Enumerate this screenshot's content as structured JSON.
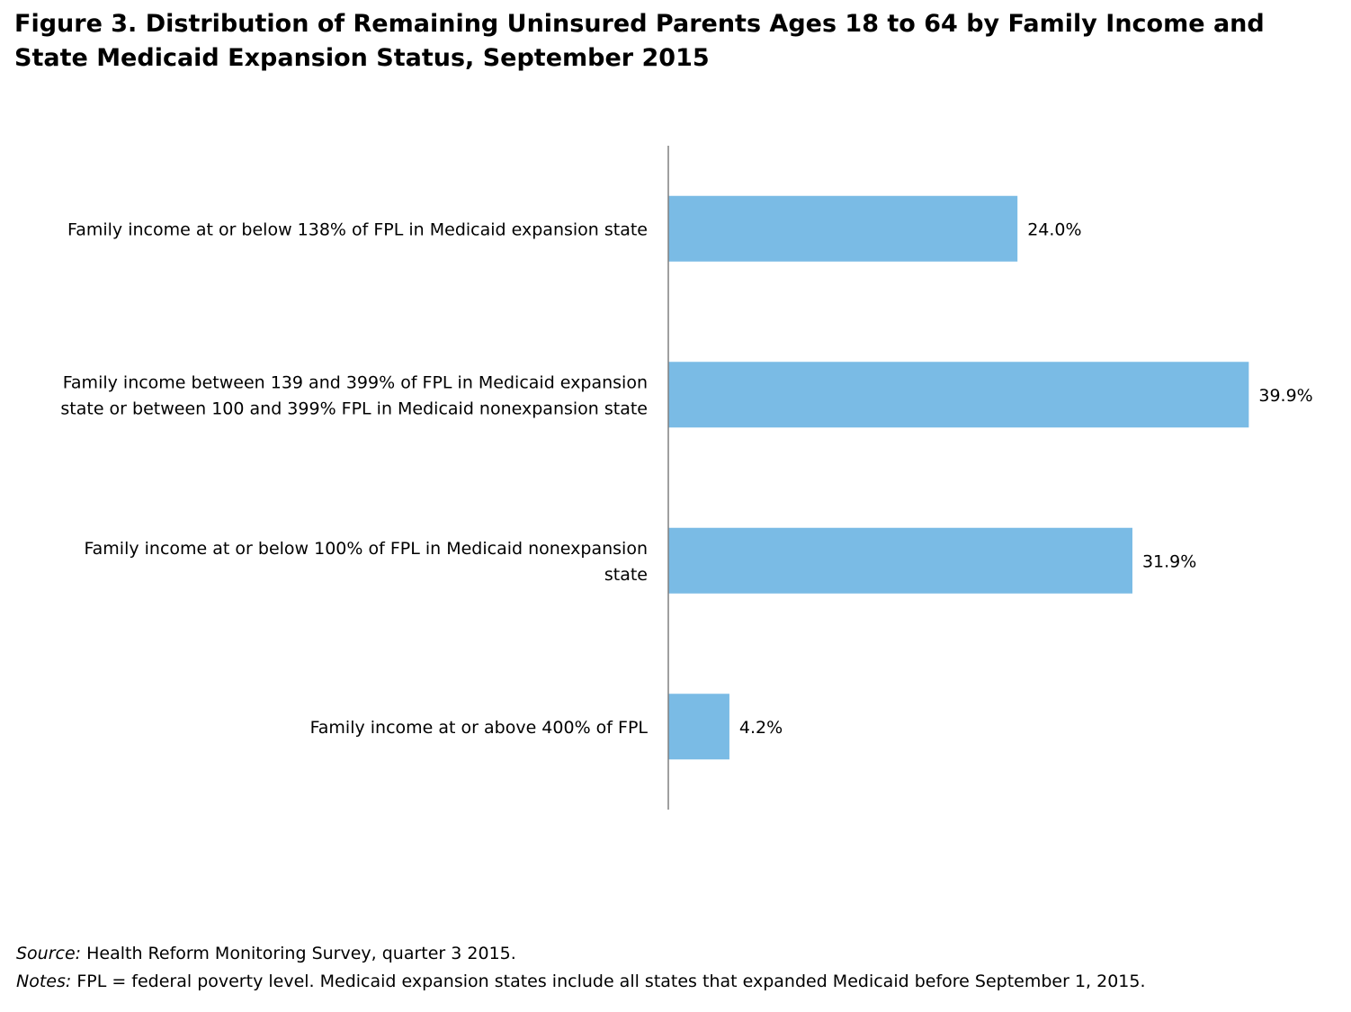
{
  "title_lines": [
    "Figure 3. Distribution of Remaining Uninsured Parents Ages 18 to 64 by Family Income and",
    "State Medicaid Expansion Status, September 2015"
  ],
  "chart_data": {
    "type": "bar",
    "orientation": "horizontal",
    "categories": [
      [
        "Family income at or below 138% of FPL in Medicaid expansion state"
      ],
      [
        "Family income between 139 and 399% of FPL in Medicaid expansion",
        "state or between 100 and 399% FPL in Medicaid nonexpansion state"
      ],
      [
        "Family income at or below 100% of FPL in Medicaid nonexpansion",
        "state"
      ],
      [
        "Family income at or above 400% of FPL"
      ]
    ],
    "values": [
      24.0,
      39.9,
      31.9,
      4.2
    ],
    "data_labels": [
      "24.0%",
      "39.9%",
      "31.9%",
      "4.2%"
    ],
    "xlim": [
      0,
      40
    ],
    "bar_color": "#7abbe5",
    "axis_color": "#808080",
    "grid": false,
    "legend": "none"
  },
  "footnotes": {
    "source_label": "Source:",
    "source_text": " Health Reform Monitoring Survey, quarter 3 2015.",
    "notes_label": "Notes:",
    "notes_text": " FPL = federal poverty level. Medicaid expansion states include all states that expanded Medicaid before September 1, 2015."
  }
}
